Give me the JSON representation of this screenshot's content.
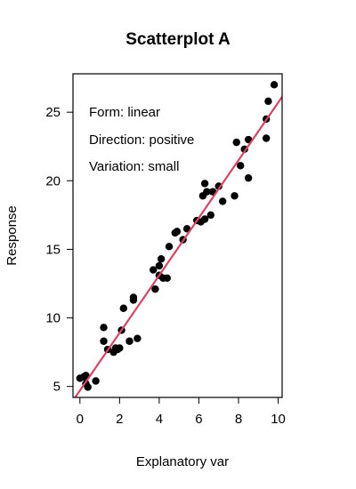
{
  "chart_data": {
    "type": "scatter",
    "title": "Scatterplot A",
    "xlabel": "Explanatory var",
    "ylabel": "Response",
    "xlim": [
      -0.35,
      10.2
    ],
    "ylim": [
      4.2,
      27.8
    ],
    "xticks": [
      0,
      2,
      4,
      6,
      8,
      10
    ],
    "yticks": [
      5,
      10,
      15,
      20,
      25
    ],
    "grid": false,
    "annotations": [
      "Form: linear",
      "Direction: positive",
      "Variation: small"
    ],
    "colors": {
      "points": "#000000",
      "fit_line": "#d64565"
    },
    "points": [
      [
        0.0,
        5.6
      ],
      [
        0.2,
        5.7
      ],
      [
        0.3,
        5.2
      ],
      [
        0.3,
        5.8
      ],
      [
        0.4,
        4.95
      ],
      [
        0.8,
        5.4
      ],
      [
        1.2,
        9.3
      ],
      [
        1.2,
        8.3
      ],
      [
        1.4,
        7.7
      ],
      [
        1.7,
        7.5
      ],
      [
        1.8,
        7.8
      ],
      [
        1.9,
        7.7
      ],
      [
        2.0,
        7.8
      ],
      [
        2.1,
        9.1
      ],
      [
        2.2,
        10.7
      ],
      [
        2.5,
        8.3
      ],
      [
        2.7,
        11.5
      ],
      [
        2.7,
        11.3
      ],
      [
        2.9,
        8.5
      ],
      [
        3.7,
        13.5
      ],
      [
        3.8,
        12.1
      ],
      [
        4.0,
        13.8
      ],
      [
        4.0,
        13.1
      ],
      [
        4.1,
        14.3
      ],
      [
        4.2,
        12.9
      ],
      [
        4.4,
        12.9
      ],
      [
        4.5,
        15.2
      ],
      [
        4.8,
        16.2
      ],
      [
        4.9,
        16.3
      ],
      [
        5.2,
        15.7
      ],
      [
        5.4,
        16.5
      ],
      [
        5.9,
        17.1
      ],
      [
        6.1,
        17.0
      ],
      [
        6.2,
        18.9
      ],
      [
        6.3,
        17.2
      ],
      [
        6.3,
        19.8
      ],
      [
        6.4,
        19.2
      ],
      [
        6.6,
        17.5
      ],
      [
        6.7,
        19.2
      ],
      [
        7.0,
        19.6
      ],
      [
        7.2,
        18.5
      ],
      [
        7.8,
        18.9
      ],
      [
        7.9,
        22.8
      ],
      [
        8.1,
        21.1
      ],
      [
        8.3,
        22.3
      ],
      [
        8.5,
        23.0
      ],
      [
        8.5,
        20.2
      ],
      [
        9.4,
        24.5
      ],
      [
        9.4,
        23.1
      ],
      [
        9.5,
        25.8
      ],
      [
        9.8,
        27.0
      ]
    ],
    "fit_line": {
      "intercept": 4.7,
      "slope": 2.1
    }
  }
}
